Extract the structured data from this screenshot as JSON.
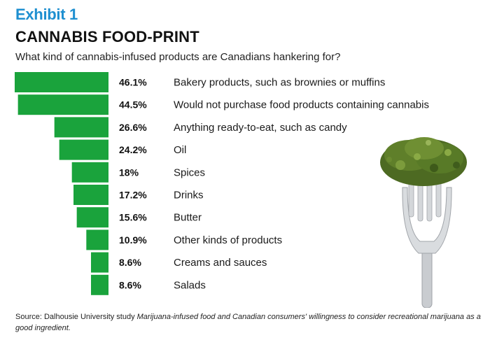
{
  "exhibit_label": "Exhibit 1",
  "title": "CANNABIS FOOD-PRINT",
  "subtitle": "What kind of cannabis-infused products are Canadians hankering for?",
  "source_prefix": "Source: Dalhousie University study ",
  "source_italic": "Marijuana-infused food and Canadian consumers' willingness to consider recreational marijuana as a good ingredient.",
  "colors": {
    "bar": "#1aa33c",
    "exhibit": "#1e8fd0"
  },
  "icons": {
    "illustration": "fork-with-cannabis-icon"
  },
  "chart_data": {
    "type": "bar",
    "orientation": "horizontal",
    "categories": [
      "Bakery products, such as brownies or muffins",
      "Would not purchase food products containing cannabis",
      "Anything ready-to-eat, such as candy",
      "Oil",
      "Spices",
      "Drinks",
      "Butter",
      "Other kinds of products",
      "Creams and sauces",
      "Salads"
    ],
    "values": [
      46.1,
      44.5,
      26.6,
      24.2,
      18,
      17.2,
      15.6,
      10.9,
      8.6,
      8.6
    ],
    "value_labels": [
      "46.1%",
      "44.5%",
      "26.6%",
      "24.2%",
      "18%",
      "17.2%",
      "15.6%",
      "10.9%",
      "8.6%",
      "8.6%"
    ],
    "unit": "%",
    "xlim": [
      0,
      46.1
    ],
    "bar_alignment": "right",
    "grid": false,
    "legend": "none"
  }
}
